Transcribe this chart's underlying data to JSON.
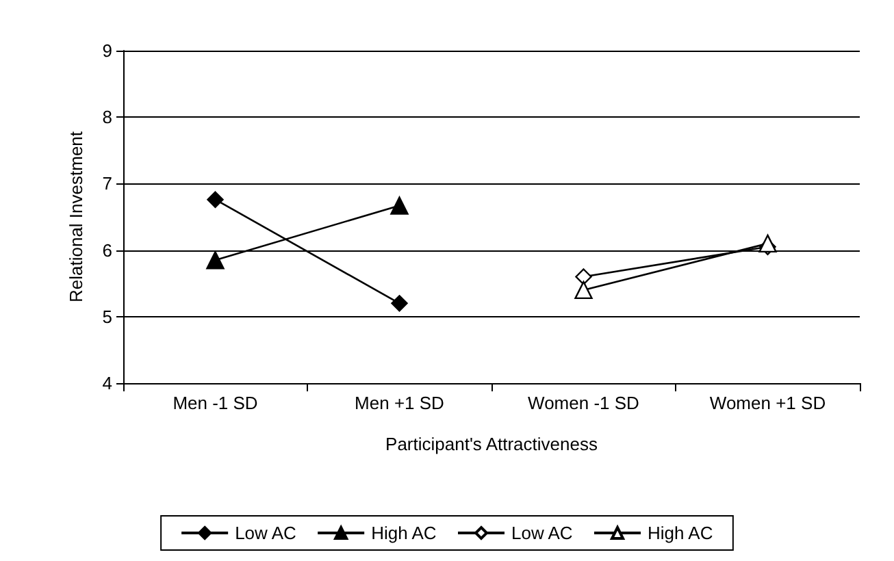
{
  "chart_data": {
    "type": "line",
    "xlabel": "Participant's Attractiveness",
    "ylabel": "Relational Investment",
    "categories": [
      "Men -1 SD",
      "Men +1 SD",
      "Women -1 SD",
      "Women +1 SD"
    ],
    "series": [
      {
        "name": "Low AC",
        "color": "#000000",
        "marker": "diamond",
        "values": [
          6.76,
          5.2,
          null,
          null
        ]
      },
      {
        "name": "High AC",
        "color": "#000000",
        "marker": "triangle",
        "values": [
          5.85,
          6.67,
          null,
          null
        ]
      },
      {
        "name": "Low AC",
        "color": "#000000",
        "colors": [
          null,
          null,
          "#ffffff",
          "#ffffff"
        ],
        "marker": "diamond",
        "values": [
          null,
          null,
          5.6,
          6.05
        ]
      },
      {
        "name": "High AC",
        "color": "#000000",
        "colors": [
          null,
          null,
          "#ffffff",
          "#ffffff"
        ],
        "marker": "triangle",
        "values": [
          null,
          null,
          5.4,
          6.1
        ]
      }
    ],
    "ylim": [
      4,
      9
    ],
    "yticks": [
      4,
      5,
      6,
      7,
      8,
      9
    ],
    "grid": "y",
    "legend": "bottom",
    "line_style": "solid"
  }
}
